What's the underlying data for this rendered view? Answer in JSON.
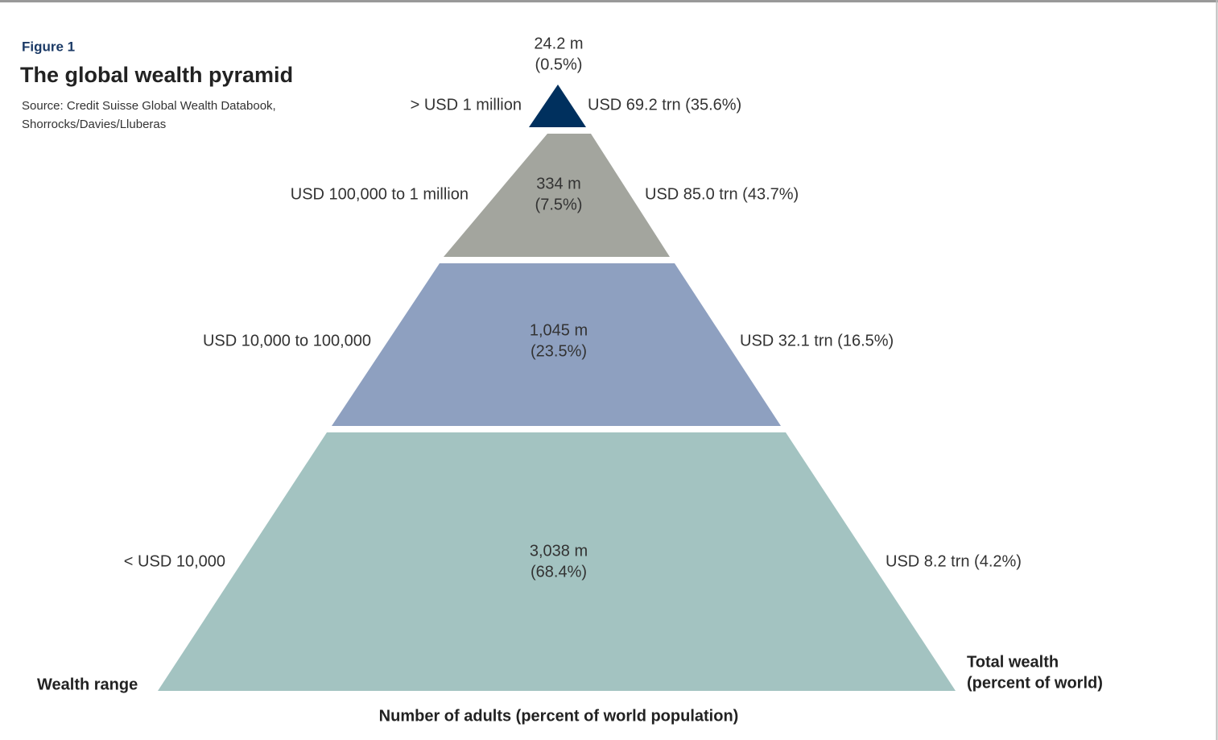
{
  "header": {
    "figure": "Figure 1",
    "title": "The global wealth pyramid",
    "source": [
      "Source: Credit Suisse Global Wealth Databook,",
      "Shorrocks/Davies/Lluberas"
    ]
  },
  "tiers": [
    {
      "range": "> USD 1 million",
      "adults": [
        "24.2 m",
        "(0.5%)"
      ],
      "wealth": "USD 69.2 trn (35.6%)"
    },
    {
      "range": "USD 100,000 to 1 million",
      "adults": [
        "334 m",
        "(7.5%)"
      ],
      "wealth": "USD 85.0 trn (43.7%)"
    },
    {
      "range": "USD 10,000 to 100,000",
      "adults": [
        "1,045 m",
        "(23.5%)"
      ],
      "wealth": "USD 32.1 trn (16.5%)"
    },
    {
      "range": "< USD 10,000",
      "adults": [
        "3,038 m",
        "(68.4%)"
      ],
      "wealth": "USD 8.2 trn (4.2%)"
    }
  ],
  "labels": {
    "wealth_range": "Wealth range",
    "total_wealth": [
      "Total wealth",
      "(percent of world)"
    ],
    "adults_axis": "Number of adults (percent of world population)"
  }
}
